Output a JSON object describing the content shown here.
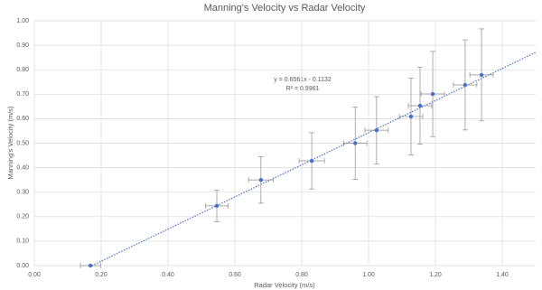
{
  "chart_data": {
    "type": "scatter",
    "title": "Manning's Velocity vs Radar Velocity",
    "x_label": "Radar Velocity (m/s)",
    "y_label": "Manning's Velocity (m/s)",
    "xlim": [
      0,
      1.5
    ],
    "ylim": [
      0,
      1
    ],
    "xticks": [
      {
        "value": 0,
        "label": "0.00"
      },
      {
        "value": 0.2,
        "label": "0.20"
      },
      {
        "value": 0.4,
        "label": "0.40"
      },
      {
        "value": 0.6,
        "label": "0.60"
      },
      {
        "value": 0.8,
        "label": "0.80"
      },
      {
        "value": 1,
        "label": "1.00"
      },
      {
        "value": 1.2,
        "label": "1.20"
      },
      {
        "value": 1.4,
        "label": "1.40"
      }
    ],
    "yticks": [
      {
        "value": 0,
        "label": "0.00"
      },
      {
        "value": 0.1,
        "label": "0.10"
      },
      {
        "value": 0.2,
        "label": "0.20"
      },
      {
        "value": 0.3,
        "label": "0.30"
      },
      {
        "value": 0.4,
        "label": "0.40"
      },
      {
        "value": 0.5,
        "label": "0.50"
      },
      {
        "value": 0.6,
        "label": "0.60"
      },
      {
        "value": 0.7,
        "label": "0.70"
      },
      {
        "value": 0.8,
        "label": "0.80"
      },
      {
        "value": 0.9,
        "label": "0.90"
      },
      {
        "value": 1,
        "label": "1.00"
      }
    ],
    "grid": true,
    "color": "#4472c4",
    "x": [
      0.168,
      0.546,
      0.678,
      0.83,
      0.96,
      1.024,
      1.127,
      1.154,
      1.192,
      1.289,
      1.338
    ],
    "y": [
      0.0,
      0.244,
      0.35,
      0.428,
      0.5,
      0.553,
      0.609,
      0.653,
      0.701,
      0.738,
      0.779
    ],
    "x_err": [
      0.03,
      0.034,
      0.037,
      0.038,
      0.035,
      0.035,
      0.035,
      0.035,
      0.035,
      0.035,
      0.035
    ],
    "y_err": [
      0,
      0.065,
      0.095,
      0.115,
      0.148,
      0.137,
      0.157,
      0.157,
      0.174,
      0.184,
      0.188
    ],
    "trendline": {
      "equation": "y = 0.6561x - 0.1132",
      "r_squared": "R² = 0.9961",
      "slope": 0.6561,
      "intercept": -0.1132
    }
  }
}
